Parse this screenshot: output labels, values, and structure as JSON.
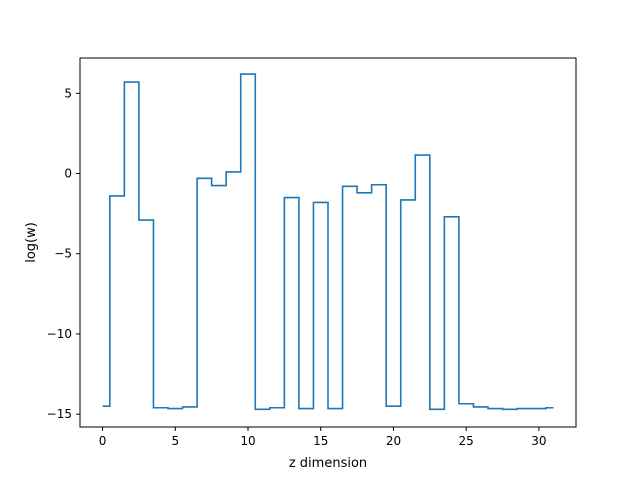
{
  "chart_data": {
    "type": "line",
    "step": "mid",
    "title": "",
    "xlabel": "z dimension",
    "ylabel": "log(w)",
    "xlim": [
      -1.55,
      32.55
    ],
    "ylim": [
      -15.8,
      7.2
    ],
    "xticks": [
      0,
      5,
      10,
      15,
      20,
      25,
      30
    ],
    "yticks": [
      -15,
      -10,
      -5,
      0,
      5
    ],
    "ytick_labels": [
      "−15",
      "−10",
      "−5",
      "0",
      "5"
    ],
    "grid": false,
    "legend": "none",
    "series": [
      {
        "color": "#1f77b4",
        "x": [
          0,
          1,
          2,
          3,
          4,
          5,
          6,
          7,
          8,
          9,
          10,
          11,
          12,
          13,
          14,
          15,
          16,
          17,
          18,
          19,
          20,
          21,
          22,
          23,
          24,
          25,
          26,
          27,
          28,
          29,
          30,
          31
        ],
        "y": [
          -14.5,
          -1.4,
          5.7,
          -2.9,
          -14.6,
          -14.65,
          -14.55,
          -0.3,
          -0.75,
          0.1,
          6.2,
          -14.7,
          -14.6,
          -1.5,
          -14.65,
          -1.8,
          -14.65,
          -0.8,
          -1.2,
          -0.7,
          -14.5,
          -1.65,
          1.15,
          -14.7,
          -2.7,
          -14.35,
          -14.55,
          -14.65,
          -14.7,
          -14.65,
          -14.65,
          -14.6
        ]
      }
    ]
  }
}
